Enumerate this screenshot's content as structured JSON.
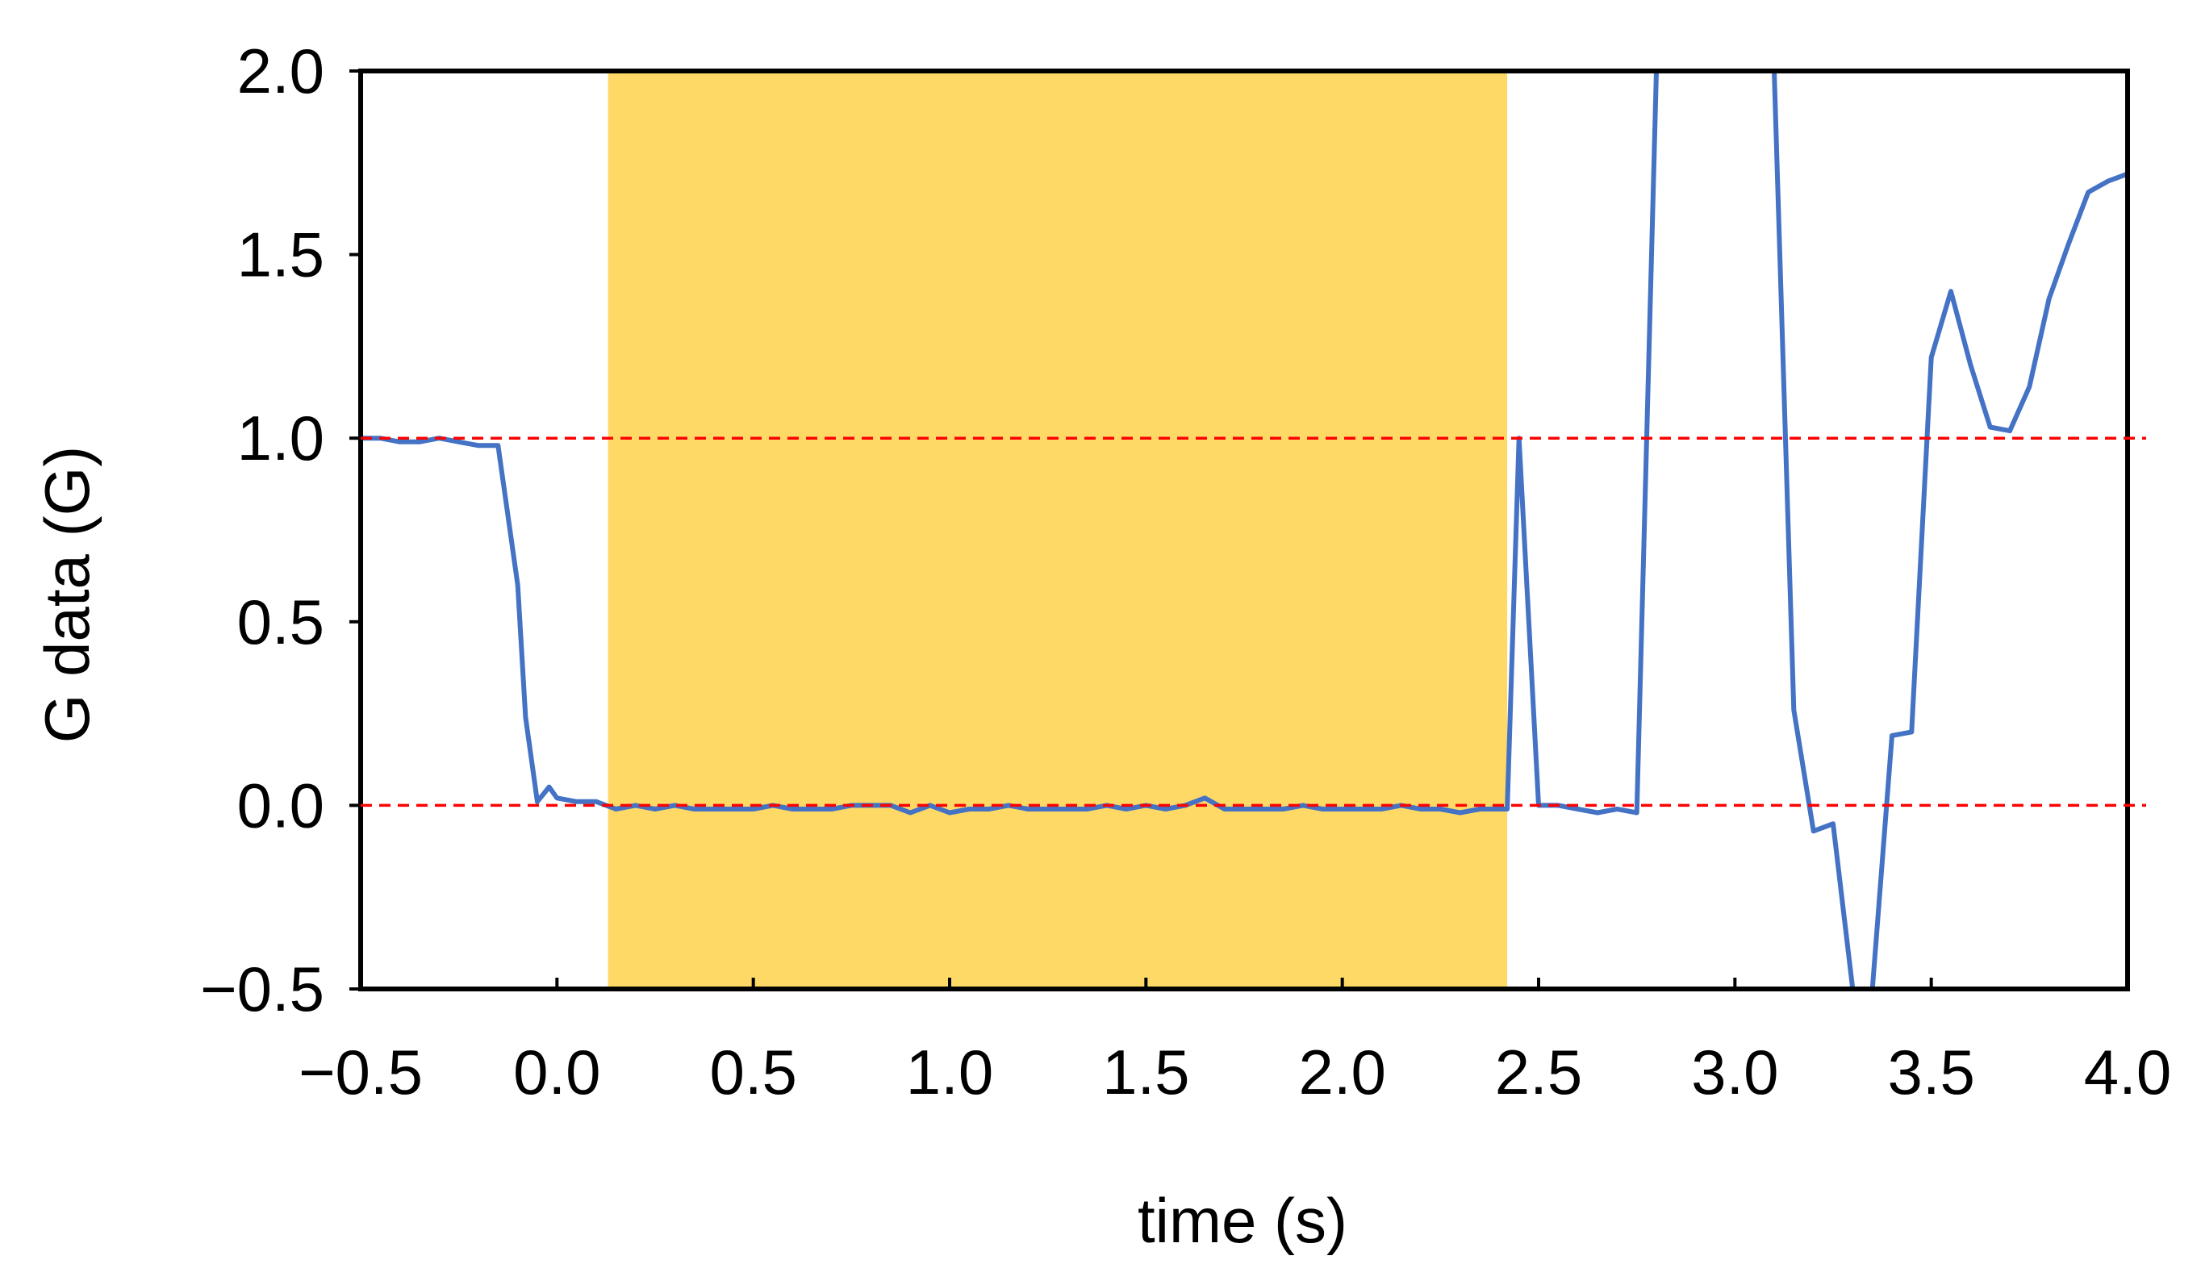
{
  "chart_data": {
    "type": "line",
    "title": "",
    "xlabel": "time (s)",
    "ylabel": "G data (G)",
    "xlim": [
      -0.5,
      4.0
    ],
    "ylim": [
      -0.5,
      2.0
    ],
    "x_ticks": [
      -0.5,
      0.0,
      0.5,
      1.0,
      1.5,
      2.0,
      2.5,
      3.0,
      3.5,
      4.0
    ],
    "x_tick_labels": [
      "−0.5",
      "0.0",
      "0.5",
      "1.0",
      "1.5",
      "2.0",
      "2.5",
      "3.0",
      "3.5",
      "4.0"
    ],
    "y_ticks": [
      -0.5,
      0.0,
      0.5,
      1.0,
      1.5,
      2.0
    ],
    "y_tick_labels": [
      "−0.5",
      "0.0",
      "0.5",
      "1.0",
      "1.5",
      "2.0"
    ],
    "grid": false,
    "legend": "none",
    "colors": {
      "series": "#4472C4",
      "reference_lines": "#FF0000",
      "highlight": "#FFD966",
      "frame": "#000000"
    },
    "highlight_region": {
      "x_start": 0.13,
      "x_end": 2.42
    },
    "reference_lines": [
      0.0,
      1.0
    ],
    "series": [
      {
        "x": [
          -0.5,
          -0.45,
          -0.4,
          -0.35,
          -0.3,
          -0.25,
          -0.2,
          -0.15,
          -0.1,
          -0.08,
          -0.05,
          -0.02,
          0.0,
          0.05,
          0.1,
          0.15,
          0.2,
          0.25,
          0.3,
          0.35,
          0.4,
          0.45,
          0.5,
          0.55,
          0.6,
          0.65,
          0.7,
          0.75,
          0.8,
          0.85,
          0.9,
          0.95,
          1.0,
          1.05,
          1.1,
          1.15,
          1.2,
          1.25,
          1.3,
          1.35,
          1.4,
          1.45,
          1.5,
          1.55,
          1.6,
          1.65,
          1.7,
          1.75,
          1.8,
          1.85,
          1.9,
          1.95,
          2.0,
          2.05,
          2.1,
          2.15,
          2.2,
          2.25,
          2.3,
          2.35,
          2.4,
          2.42,
          2.45,
          2.5,
          2.55,
          2.6,
          2.65,
          2.7,
          2.75,
          2.8,
          3.1,
          3.15,
          3.2,
          3.25,
          3.3,
          3.35,
          3.4,
          3.45,
          3.5,
          3.55,
          3.6,
          3.65,
          3.7,
          3.75,
          3.8,
          3.85,
          3.9,
          3.95,
          4.0
        ],
        "y": [
          1.0,
          1.0,
          0.99,
          0.99,
          1.0,
          0.99,
          0.98,
          0.98,
          0.6,
          0.24,
          0.01,
          0.05,
          0.02,
          0.01,
          0.01,
          -0.01,
          0.0,
          -0.01,
          0.0,
          -0.01,
          -0.01,
          -0.01,
          -0.01,
          0.0,
          -0.01,
          -0.01,
          -0.01,
          0.0,
          0.0,
          0.0,
          -0.02,
          0.0,
          -0.02,
          -0.01,
          -0.01,
          0.0,
          -0.01,
          -0.01,
          -0.01,
          -0.01,
          0.0,
          -0.01,
          0.0,
          -0.01,
          0.0,
          0.02,
          -0.01,
          -0.01,
          -0.01,
          -0.01,
          0.0,
          -0.01,
          -0.01,
          -0.01,
          -0.01,
          0.0,
          -0.01,
          -0.01,
          -0.02,
          -0.01,
          -0.01,
          -0.01,
          1.0,
          0.0,
          0.0,
          -0.01,
          -0.02,
          -0.01,
          -0.02,
          2.0,
          2.0,
          0.26,
          -0.07,
          -0.05,
          -0.5,
          -0.5,
          0.19,
          0.2,
          1.22,
          1.4,
          1.2,
          1.03,
          1.02,
          1.14,
          1.38,
          1.53,
          1.67,
          1.7,
          1.72
        ]
      }
    ]
  }
}
